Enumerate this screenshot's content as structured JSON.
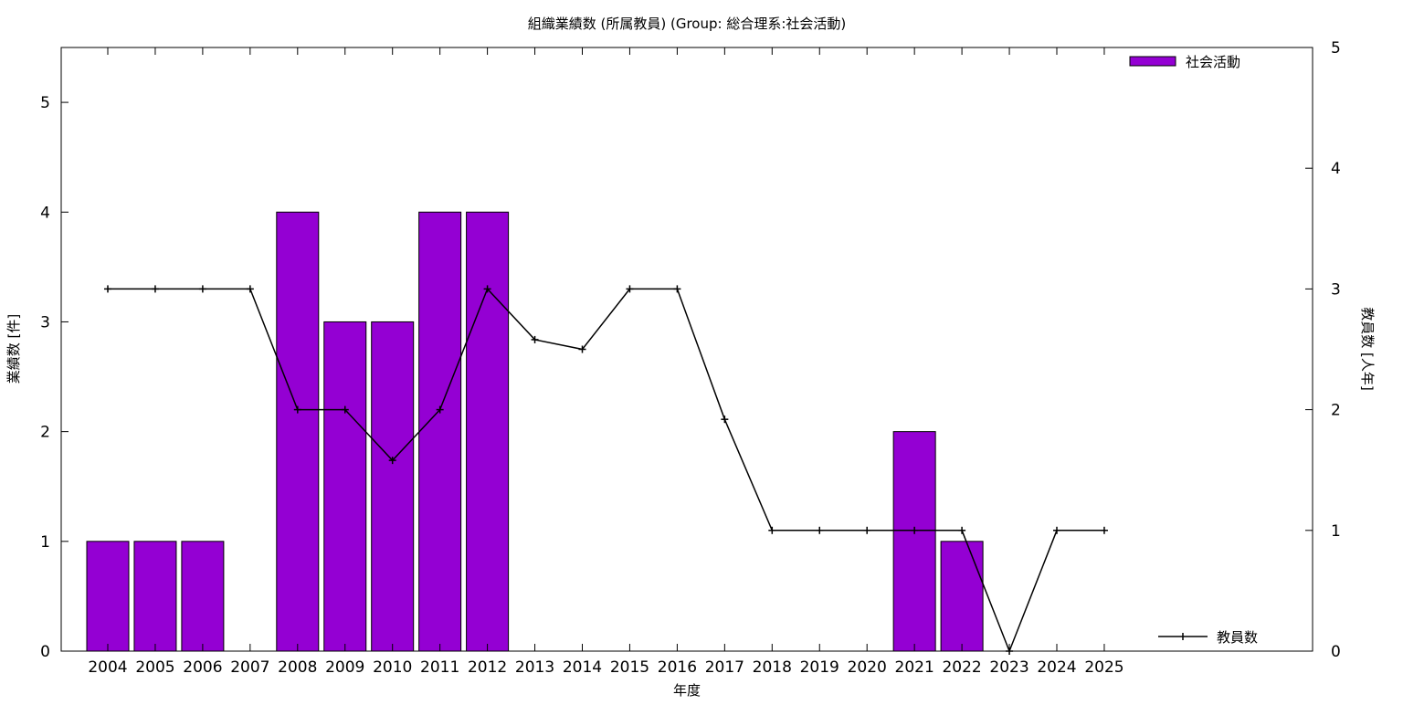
{
  "chart_data": {
    "type": "bar",
    "title": "組織業績数 (所属教員) (Group: 総合理系:社会活動)",
    "xlabel": "年度",
    "ylabel": "業績数 [件]",
    "y2label": "教員数 [人年]",
    "categories": [
      "2004",
      "2005",
      "2006",
      "2007",
      "2008",
      "2009",
      "2010",
      "2011",
      "2012",
      "2013",
      "2014",
      "2015",
      "2016",
      "2017",
      "2018",
      "2019",
      "2020",
      "2021",
      "2022",
      "2023",
      "2024",
      "2025"
    ],
    "ylim": [
      0,
      5.5
    ],
    "y2lim": [
      0,
      5
    ],
    "yticks": [
      "0",
      "1",
      "2",
      "3",
      "4",
      "5"
    ],
    "y2ticks": [
      "0",
      "1",
      "2",
      "3",
      "4",
      "5"
    ],
    "grid": false,
    "series": [
      {
        "name": "社会活動",
        "kind": "bar",
        "axis": "left",
        "color": "#9400d3",
        "values": [
          1,
          1,
          1,
          0,
          4,
          3,
          3,
          4,
          4,
          0,
          0,
          0,
          0,
          0,
          0,
          0,
          0,
          2,
          1,
          0,
          0,
          0
        ]
      },
      {
        "name": "教員数",
        "kind": "line",
        "axis": "right",
        "color": "#000000",
        "values": [
          3,
          3,
          3,
          3,
          2,
          2,
          1.58,
          2,
          3,
          2.58,
          2.5,
          3,
          3,
          1.92,
          1,
          1,
          1,
          1,
          1,
          0,
          1,
          1
        ]
      }
    ],
    "legend": {
      "bar": "top-right",
      "line": "bottom-right"
    }
  }
}
